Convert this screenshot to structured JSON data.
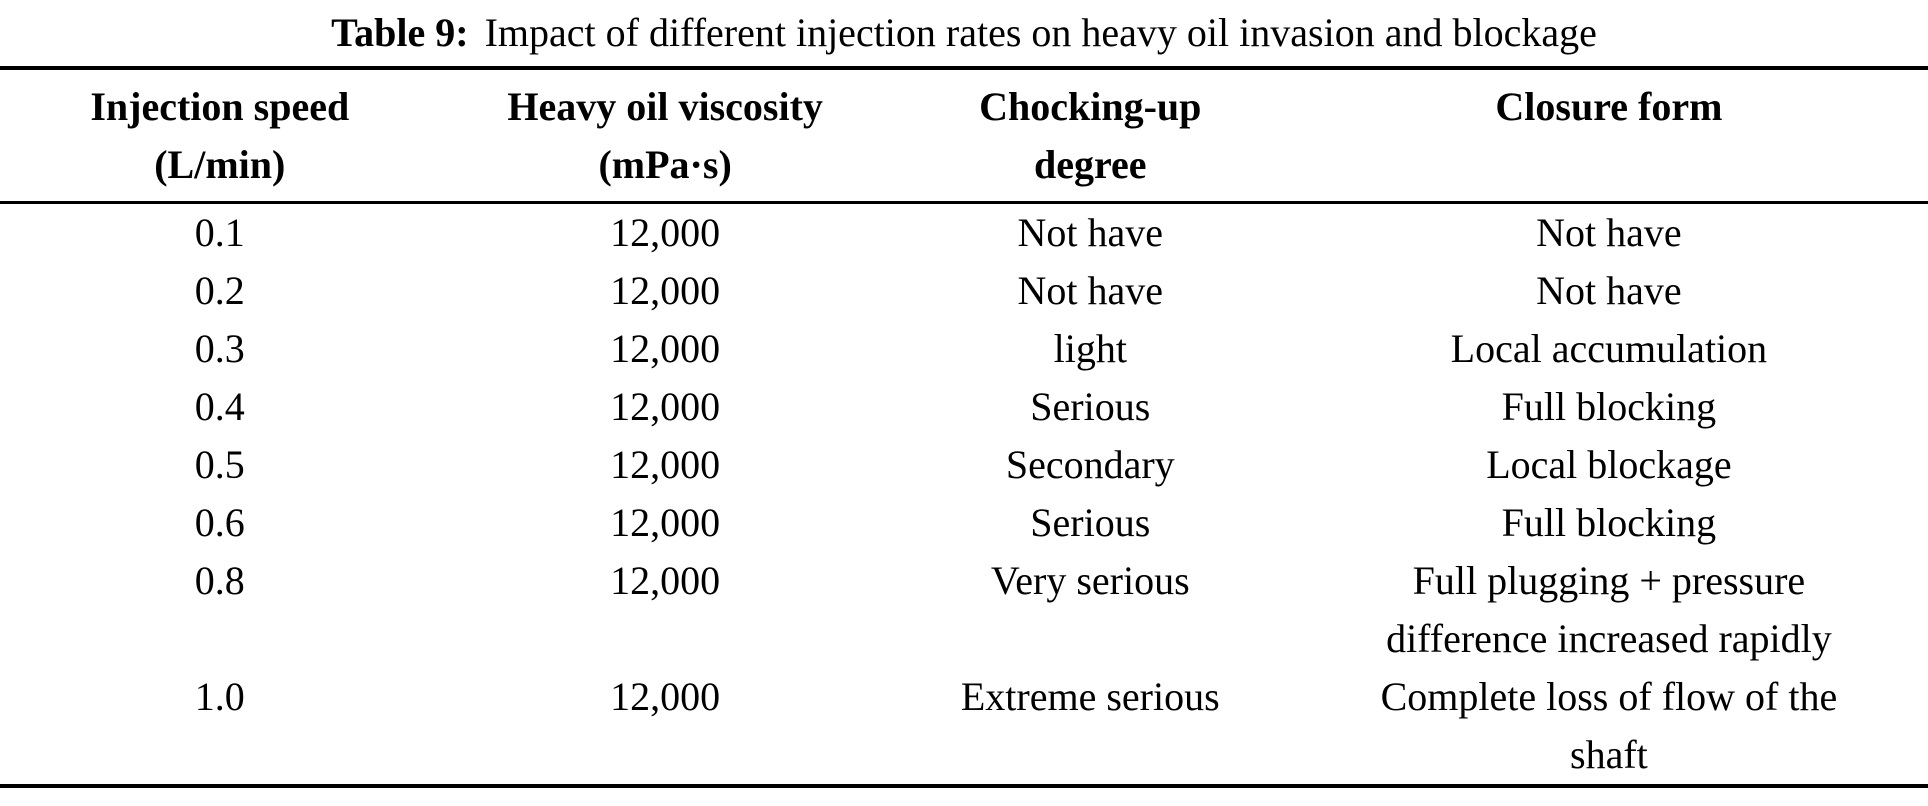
{
  "title": {
    "label": "Table 9:",
    "text": "Impact of different injection rates on heavy oil invasion and blockage"
  },
  "colors": {
    "background": "#ffffff",
    "text": "#000000",
    "rule": "#000000"
  },
  "table": {
    "columns": [
      {
        "line1": "Injection speed",
        "line2": "(L/min)"
      },
      {
        "line1": "Heavy oil viscosity",
        "line2": "(mPa·s)"
      },
      {
        "line1": "Chocking-up",
        "line2": "degree"
      },
      {
        "line1": "Closure form",
        "line2": ""
      }
    ],
    "rows": [
      [
        "0.1",
        "12,000",
        "Not have",
        "Not have"
      ],
      [
        "0.2",
        "12,000",
        "Not have",
        "Not have"
      ],
      [
        "0.3",
        "12,000",
        "light",
        "Local accumulation"
      ],
      [
        "0.4",
        "12,000",
        "Serious",
        "Full blocking"
      ],
      [
        "0.5",
        "12,000",
        "Secondary",
        "Local blockage"
      ],
      [
        "0.6",
        "12,000",
        "Serious",
        "Full blocking"
      ],
      [
        "0.8",
        "12,000",
        "Very serious",
        "Full plugging + pressure\ndifference increased rapidly"
      ],
      [
        "1.0",
        "12,000",
        "Extreme serious",
        "Complete loss of flow of the\nshaft"
      ]
    ]
  }
}
